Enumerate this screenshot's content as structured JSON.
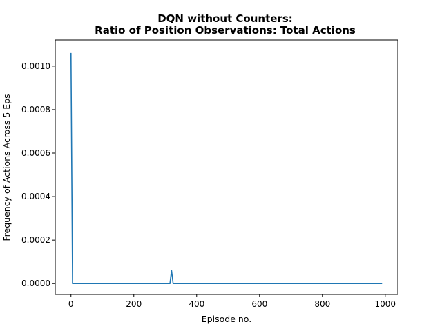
{
  "chart_data": {
    "type": "line",
    "title_lines": [
      "DQN without Counters:",
      "Ratio of Position Observations: Total Actions"
    ],
    "xlabel": "Episode no.",
    "ylabel": "Frequency of Actions Across 5 Eps",
    "xlim": [
      -50,
      1040
    ],
    "ylim": [
      -5e-05,
      0.00112
    ],
    "xticks": [
      0,
      200,
      400,
      600,
      800,
      1000
    ],
    "xtick_labels": [
      "0",
      "200",
      "400",
      "600",
      "800",
      "1000"
    ],
    "yticks": [
      0,
      0.0002,
      0.0004,
      0.0006,
      0.0008,
      0.001
    ],
    "ytick_labels": [
      "0.0000",
      "0.0002",
      "0.0004",
      "0.0006",
      "0.0008",
      "0.0010"
    ],
    "grid": false,
    "legend": "none",
    "series": [
      {
        "color": "#1f77b4",
        "x": [
          0,
          5,
          10,
          310,
          315,
          320,
          325,
          330,
          990
        ],
        "y": [
          0.00106,
          0.0,
          0.0,
          0.0,
          0.0,
          6e-05,
          0.0,
          0.0,
          0.0
        ]
      }
    ]
  }
}
